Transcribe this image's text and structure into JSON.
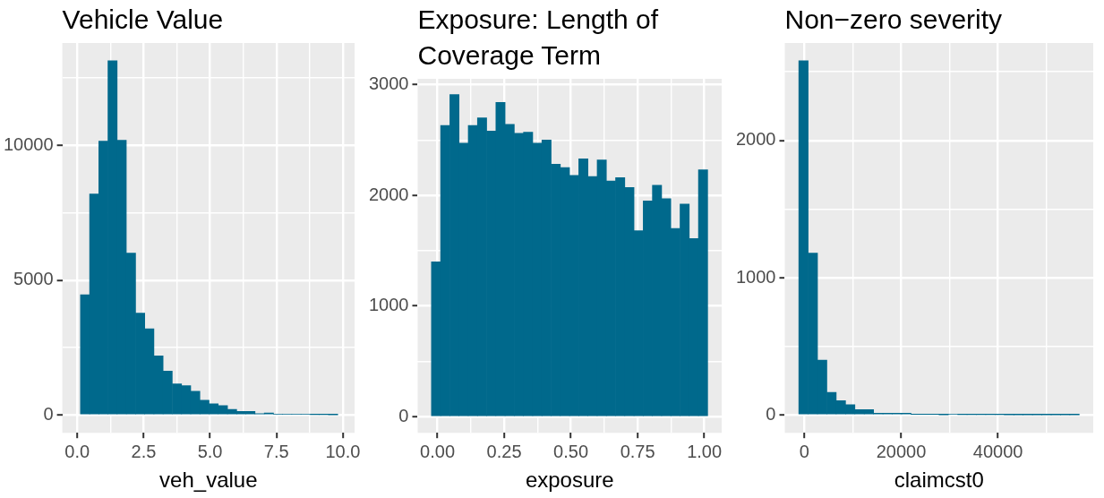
{
  "chart_data": [
    {
      "type": "histogram",
      "title": "Vehicle Value",
      "xlabel": "veh_value",
      "color": "#00698c",
      "grid": true,
      "bins": [
        0.12,
        0.47,
        0.81,
        1.16,
        1.5,
        1.85,
        2.2,
        2.54,
        2.89,
        3.23,
        3.58,
        3.93,
        4.27,
        4.62,
        4.96,
        5.31,
        5.66,
        6.0,
        6.35,
        6.69,
        7.04,
        7.39,
        7.73,
        8.08,
        8.42,
        8.77,
        9.12,
        9.46,
        9.81
      ],
      "values": [
        4460,
        8190,
        10150,
        13130,
        10180,
        6000,
        3780,
        3200,
        2190,
        1630,
        1160,
        1090,
        880,
        550,
        420,
        350,
        210,
        140,
        140,
        50,
        80,
        30,
        30,
        30,
        30,
        20,
        20,
        10
      ],
      "xlim": [
        -0.56,
        10.44
      ],
      "ylim": [
        -656,
        13786
      ],
      "xticks": [
        {
          "value": 0,
          "label": "0.0"
        },
        {
          "value": 1.25,
          "label": null
        },
        {
          "value": 2.5,
          "label": "2.5"
        },
        {
          "value": 3.75,
          "label": null
        },
        {
          "value": 5,
          "label": "5.0"
        },
        {
          "value": 6.25,
          "label": null
        },
        {
          "value": 7.5,
          "label": "7.5"
        },
        {
          "value": 8.75,
          "label": null
        },
        {
          "value": 10,
          "label": "10.0"
        }
      ],
      "yticks": [
        0,
        {
          "value": 2500,
          "label": null
        },
        5000,
        {
          "value": 7500,
          "label": null
        },
        10000,
        {
          "value": 12500,
          "label": null
        }
      ]
    },
    {
      "type": "histogram",
      "title": "Exposure: Length of Coverage Term",
      "xlabel": "exposure",
      "color": "#00698c",
      "grid": true,
      "bins": [
        -0.0225,
        0.012,
        0.0465,
        0.081,
        0.1155,
        0.15,
        0.1845,
        0.219,
        0.2535,
        0.288,
        0.3225,
        0.357,
        0.3915,
        0.426,
        0.4605,
        0.495,
        0.5295,
        0.564,
        0.5985,
        0.633,
        0.6675,
        0.702,
        0.7365,
        0.771,
        0.8055,
        0.84,
        0.8745,
        0.909,
        0.9435,
        0.978,
        1.0125
      ],
      "values": [
        1400,
        2630,
        2910,
        2470,
        2630,
        2700,
        2580,
        2840,
        2640,
        2560,
        2570,
        2470,
        2500,
        2280,
        2250,
        2180,
        2330,
        2170,
        2320,
        2130,
        2160,
        2070,
        1680,
        1950,
        2090,
        1970,
        1700,
        1920,
        1610,
        2230
      ],
      "xlim": [
        -0.074,
        1.065
      ],
      "ylim": [
        -145,
        3052
      ],
      "xticks": [
        {
          "value": 0,
          "label": "0.00"
        },
        {
          "value": 0.125,
          "label": null
        },
        {
          "value": 0.25,
          "label": "0.25"
        },
        {
          "value": 0.375,
          "label": null
        },
        {
          "value": 0.5,
          "label": "0.50"
        },
        {
          "value": 0.625,
          "label": null
        },
        {
          "value": 0.75,
          "label": "0.75"
        },
        {
          "value": 0.875,
          "label": null
        },
        {
          "value": 1,
          "label": "1.00"
        }
      ],
      "yticks": [
        0,
        {
          "value": 500,
          "label": null
        },
        1000,
        {
          "value": 1500,
          "label": null
        },
        2000,
        {
          "value": 2500,
          "label": null
        },
        3000
      ]
    },
    {
      "type": "histogram",
      "title": "Non−zero severity",
      "xlabel": "claimcst0",
      "color": "#00698c",
      "grid": true,
      "bins": [
        -1130,
        800,
        2730,
        4660,
        6590,
        8520,
        10450,
        12380,
        14310,
        16240,
        18170,
        20100,
        22030,
        23960,
        25890,
        27820,
        29750,
        31680,
        33610,
        35540,
        37470,
        39400,
        41330,
        43260,
        45190,
        47120,
        49050,
        50980,
        52910,
        54840,
        56770
      ],
      "values": [
        2580,
        1180,
        400,
        165,
        105,
        75,
        40,
        40,
        13,
        13,
        13,
        13,
        5,
        5,
        5,
        2,
        7,
        3,
        3,
        3,
        3,
        3,
        2,
        2,
        2,
        2,
        2,
        2,
        2,
        2
      ],
      "xlim": [
        -4025,
        59665
      ],
      "ylim": [
        -129,
        2710
      ],
      "xticks": [
        0,
        {
          "value": 10000,
          "label": null
        },
        20000,
        {
          "value": 30000,
          "label": null
        },
        40000,
        {
          "value": 50000,
          "label": null
        }
      ],
      "yticks": [
        0,
        {
          "value": 500,
          "label": null
        },
        1000,
        {
          "value": 1500,
          "label": null
        },
        2000,
        {
          "value": 2500,
          "label": null
        }
      ]
    }
  ]
}
